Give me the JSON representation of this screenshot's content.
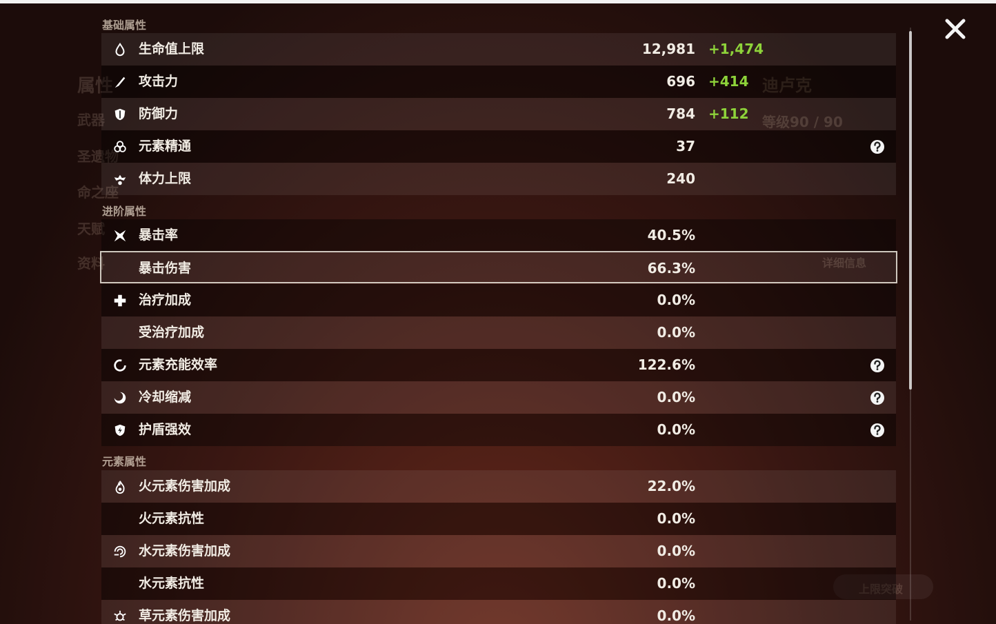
{
  "background": {
    "character_name": "迪卢克",
    "level": "等级90 / 90",
    "menu": [
      "属性",
      "武器",
      "圣遗物",
      "命之座",
      "天赋",
      "资料"
    ],
    "details": "详细信息",
    "ascend": "上限突破"
  },
  "sections": [
    {
      "title": "基础属性",
      "rows": [
        {
          "name": "生命值上限",
          "value": "12,981",
          "bonus": "+1,474"
        },
        {
          "name": "攻击力",
          "value": "696",
          "bonus": "+414"
        },
        {
          "name": "防御力",
          "value": "784",
          "bonus": "+112"
        },
        {
          "name": "元素精通",
          "value": "37",
          "help": true
        },
        {
          "name": "体力上限",
          "value": "240"
        }
      ]
    },
    {
      "title": "进阶属性",
      "rows": [
        {
          "name": "暴击率",
          "value": "40.5%"
        },
        {
          "name": "暴击伤害",
          "value": "66.3%",
          "selected": true
        },
        {
          "name": "治疗加成",
          "value": "0.0%"
        },
        {
          "name": "受治疗加成",
          "value": "0.0%"
        },
        {
          "name": "元素充能效率",
          "value": "122.6%",
          "help": true
        },
        {
          "name": "冷却缩减",
          "value": "0.0%",
          "help": true
        },
        {
          "name": "护盾强效",
          "value": "0.0%",
          "help": true
        }
      ]
    },
    {
      "title": "元素属性",
      "rows": [
        {
          "name": "火元素伤害加成",
          "value": "22.0%"
        },
        {
          "name": "火元素抗性",
          "value": "0.0%"
        },
        {
          "name": "水元素伤害加成",
          "value": "0.0%"
        },
        {
          "name": "水元素抗性",
          "value": "0.0%"
        },
        {
          "name": "草元素伤害加成",
          "value": "0.0%"
        }
      ]
    }
  ]
}
